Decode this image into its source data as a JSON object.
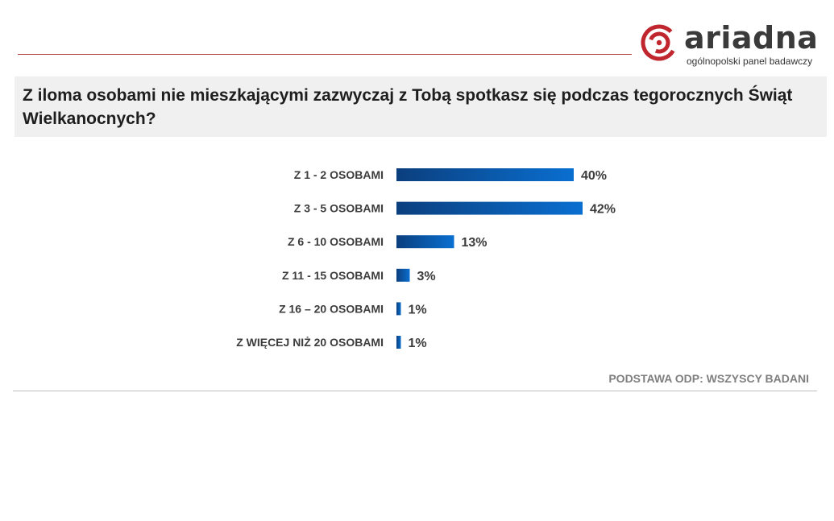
{
  "logo": {
    "brand": "ariadna",
    "tagline": "ogólnopolski panel badawczy",
    "colors": {
      "mark": "#c0262d",
      "text": "#3a3a3a"
    }
  },
  "question": "Z iloma osobami nie mieszkającymi zazwyczaj z Tobą spotkasz się podczas tegorocznych Świąt Wielkanocnych?",
  "source_note": "PODSTAWA ODP: WSZYSCY BADANI",
  "chart_data": {
    "type": "bar",
    "orientation": "horizontal",
    "categories": [
      "Z 1 - 2 OSOBAMI",
      "Z 3 - 5 OSOBAMI",
      "Z 6 - 10 OSOBAMI",
      "Z 11 - 15 OSOBAMI",
      "Z 16 – 20 OSOBAMI",
      "Z WIĘCEJ NIŻ 20 OSOBAMI"
    ],
    "values": [
      40,
      42,
      13,
      3,
      1,
      1
    ],
    "value_labels": [
      "40%",
      "42%",
      "13%",
      "3%",
      "1%",
      "1%"
    ],
    "unit": "%",
    "xlim": [
      0,
      100
    ],
    "grid": false,
    "legend": "none",
    "bar_color_start": "#0b3f7e",
    "bar_color_end": "#0a6fd0"
  }
}
